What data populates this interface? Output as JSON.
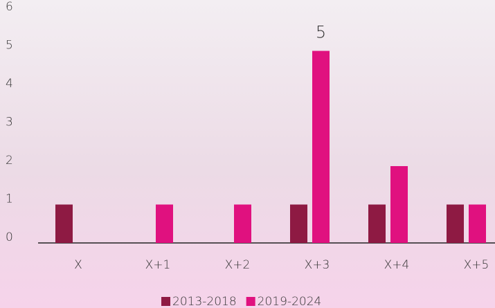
{
  "chart_data": {
    "type": "bar",
    "categories": [
      "X",
      "X+1",
      "X+2",
      "X+3",
      "X+4",
      "X+5"
    ],
    "series": [
      {
        "name": "2013-2018",
        "color": "#8e1a43",
        "values": [
          1,
          0,
          0,
          1,
          1,
          1
        ]
      },
      {
        "name": "2019-2024",
        "color": "#e0117f",
        "values": [
          0,
          1,
          1,
          5,
          2,
          1
        ],
        "value_labels": [
          null,
          null,
          null,
          "5",
          null,
          null
        ]
      }
    ],
    "ylim": [
      0,
      6
    ],
    "yticks": [
      0,
      1,
      2,
      3,
      4,
      5,
      6
    ],
    "legend": "bottom"
  }
}
